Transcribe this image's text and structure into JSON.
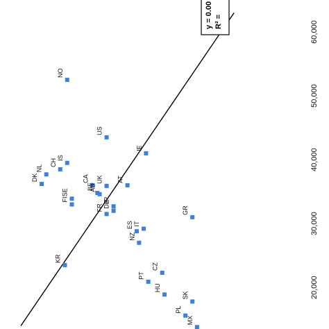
{
  "chart_data": {
    "type": "scatter",
    "orientation": "rotated-90-clockwise",
    "x_axis": {
      "ticks": [
        20000,
        30000,
        40000,
        50000,
        60000
      ],
      "tick_labels": [
        "20,000",
        "30,000",
        "40,000",
        "50,000",
        "60,000"
      ],
      "range": [
        13500,
        65000
      ]
    },
    "y_axis": {
      "range": [
        0,
        1
      ]
    },
    "grid": false,
    "trendline": {
      "from": [
        14000,
        0.0
      ],
      "to": [
        63000,
        0.92
      ]
    },
    "equation_lines": [
      "y = 0.00",
      "R² ="
    ],
    "points": [
      {
        "label": "NO",
        "x": 52500,
        "y": 0.2
      },
      {
        "label": "US",
        "x": 43500,
        "y": 0.37
      },
      {
        "label": "IE",
        "x": 41000,
        "y": 0.54
      },
      {
        "label": "IS",
        "x": 39500,
        "y": 0.2
      },
      {
        "label": "CH",
        "x": 38500,
        "y": 0.17
      },
      {
        "label": "NL",
        "x": 37700,
        "y": 0.11
      },
      {
        "label": "DK",
        "x": 36200,
        "y": 0.09
      },
      {
        "label": "CA",
        "x": 36000,
        "y": 0.31
      },
      {
        "label": "AT",
        "x": 36000,
        "y": 0.46
      },
      {
        "label": "UK",
        "x": 35900,
        "y": 0.37
      },
      {
        "label": "BE",
        "x": 34800,
        "y": 0.33
      },
      {
        "label": "AU",
        "x": 34600,
        "y": 0.34
      },
      {
        "label": "SE",
        "x": 33900,
        "y": 0.22
      },
      {
        "label": "FI",
        "x": 33000,
        "y": 0.22
      },
      {
        "label": "JP",
        "x": 32700,
        "y": 0.4
      },
      {
        "label": "DE",
        "x": 32000,
        "y": 0.4
      },
      {
        "label": "FR",
        "x": 31500,
        "y": 0.37
      },
      {
        "label": "GR",
        "x": 31000,
        "y": 0.74
      },
      {
        "label": "IT",
        "x": 29200,
        "y": 0.53
      },
      {
        "label": "ES",
        "x": 28800,
        "y": 0.5
      },
      {
        "label": "NZ",
        "x": 27000,
        "y": 0.51
      },
      {
        "label": "KR",
        "x": 23500,
        "y": 0.19
      },
      {
        "label": "CZ",
        "x": 22300,
        "y": 0.61
      },
      {
        "label": "PT",
        "x": 20900,
        "y": 0.55
      },
      {
        "label": "HU",
        "x": 18900,
        "y": 0.62
      },
      {
        "label": "SK",
        "x": 17800,
        "y": 0.74
      },
      {
        "label": "PL",
        "x": 15600,
        "y": 0.71
      },
      {
        "label": "MX",
        "x": 13800,
        "y": 0.76
      }
    ],
    "marker_color": "#3d7fd9",
    "line_color": "#000000"
  }
}
